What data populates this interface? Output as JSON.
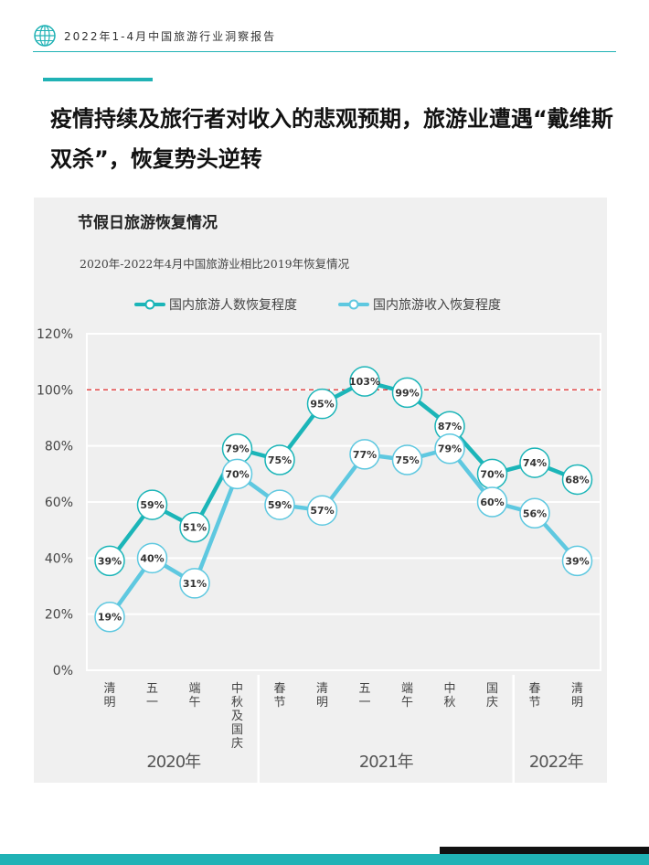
{
  "header": {
    "report_title": "2022年1-4月中国旅游行业洞察报告",
    "headline": "疫情持续及旅行者对收入的悲观预期，旅游业遭遇“戴维斯双杀”，恢复势头逆转"
  },
  "chart_data": {
    "type": "line",
    "title": "节假日旅游恢复情况",
    "subtitle": "2020年-2022年4月中国旅游业相比2019年恢复情况",
    "categories": [
      "清明",
      "五一",
      "端午",
      "中秋及国庆",
      "春节",
      "清明",
      "五一",
      "端午",
      "中秋",
      "国庆",
      "春节",
      "清明"
    ],
    "groups": [
      {
        "label": "2020年",
        "start": 0,
        "end": 3
      },
      {
        "label": "2021年",
        "start": 4,
        "end": 9
      },
      {
        "label": "2022年",
        "start": 10,
        "end": 11
      }
    ],
    "series": [
      {
        "name": "国内旅游人数恢复程度",
        "color": "#1bb5b8",
        "values": [
          39,
          59,
          51,
          79,
          75,
          95,
          103,
          99,
          87,
          70,
          74,
          68
        ]
      },
      {
        "name": "国内旅游收入恢复程度",
        "color": "#5ec8e0",
        "values": [
          19,
          40,
          31,
          70,
          59,
          57,
          77,
          75,
          79,
          60,
          56,
          39
        ]
      }
    ],
    "yticks": [
      "0%",
      "20%",
      "40%",
      "60%",
      "80%",
      "100%",
      "120%"
    ],
    "ylim": [
      0,
      120
    ],
    "reference_line": 100,
    "reference_color": "#e03a3a",
    "grid": true,
    "legend": "top"
  }
}
